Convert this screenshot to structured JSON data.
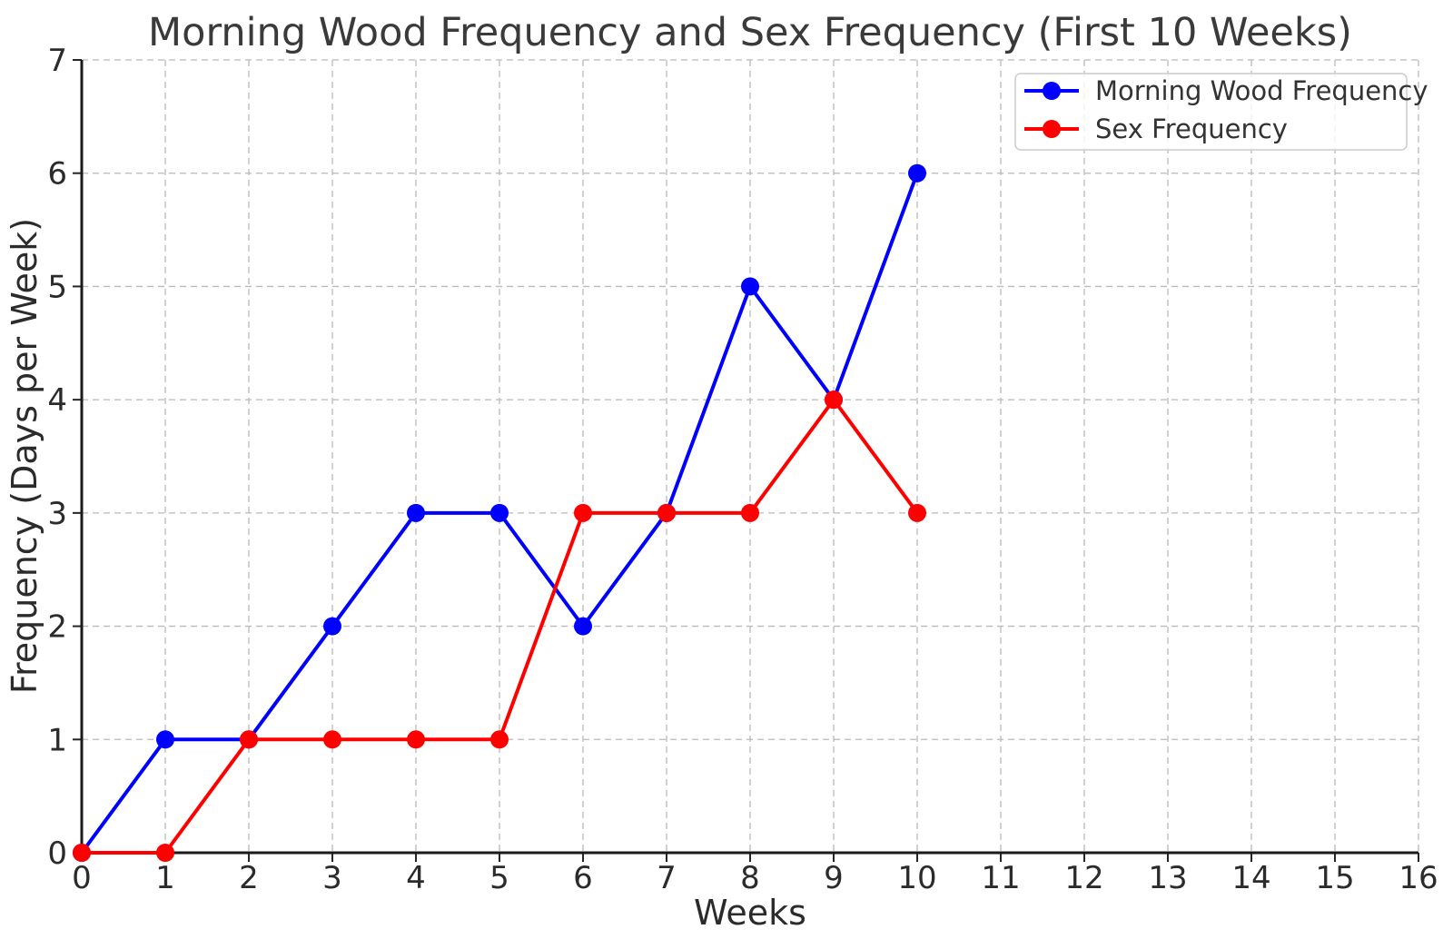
{
  "chart_data": {
    "type": "line",
    "title": "Morning Wood Frequency and Sex Frequency (First 10 Weeks)",
    "xlabel": "Weeks",
    "ylabel": "Frequency (Days per Week)",
    "x": [
      0,
      1,
      2,
      3,
      4,
      5,
      6,
      7,
      8,
      9,
      10
    ],
    "series": [
      {
        "name": "Morning Wood Frequency",
        "color": "#0000ff",
        "values": [
          0,
          1,
          1,
          2,
          3,
          3,
          2,
          3,
          5,
          4,
          6
        ]
      },
      {
        "name": "Sex Frequency",
        "color": "#ff0000",
        "values": [
          0,
          0,
          1,
          1,
          1,
          1,
          3,
          3,
          3,
          4,
          3
        ]
      }
    ],
    "xlim": [
      0,
      16
    ],
    "ylim": [
      0,
      7
    ],
    "xticks": [
      0,
      1,
      2,
      3,
      4,
      5,
      6,
      7,
      8,
      9,
      10,
      11,
      12,
      13,
      14,
      15,
      16
    ],
    "yticks": [
      0,
      1,
      2,
      3,
      4,
      5,
      6,
      7
    ],
    "grid": {
      "style": "dashed",
      "color": "#b9b9b9"
    },
    "legend": {
      "position": "upper right"
    }
  }
}
